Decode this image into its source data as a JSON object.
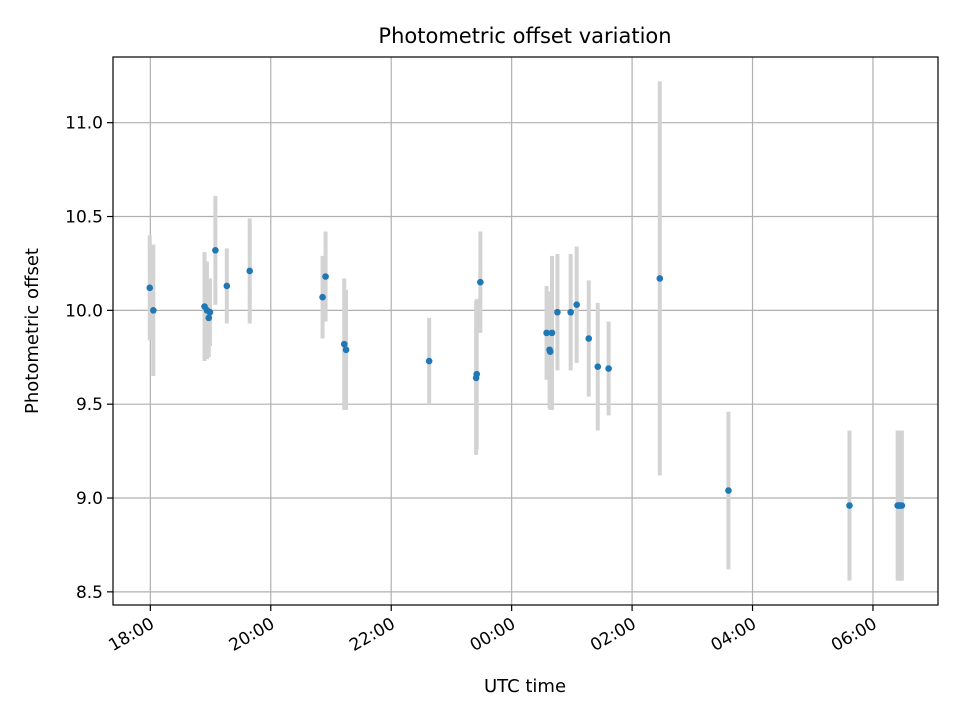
{
  "chart_data": {
    "type": "scatter",
    "title": "Photometric offset variation",
    "xlabel": "UTC time",
    "ylabel": "Photometric offset",
    "x_unit": "hours (UTC, continuing past midnight)",
    "xlim": [
      17.38,
      31.08
    ],
    "ylim": [
      8.43,
      11.35
    ],
    "x_ticks": [
      {
        "value": 18,
        "label": "18:00"
      },
      {
        "value": 20,
        "label": "20:00"
      },
      {
        "value": 22,
        "label": "22:00"
      },
      {
        "value": 24,
        "label": "00:00"
      },
      {
        "value": 26,
        "label": "02:00"
      },
      {
        "value": 28,
        "label": "04:00"
      },
      {
        "value": 30,
        "label": "06:00"
      }
    ],
    "y_ticks": [
      {
        "value": 8.5,
        "label": "8.5"
      },
      {
        "value": 9.0,
        "label": "9.0"
      },
      {
        "value": 9.5,
        "label": "9.5"
      },
      {
        "value": 10.0,
        "label": "10.0"
      },
      {
        "value": 10.5,
        "label": "10.5"
      },
      {
        "value": 11.0,
        "label": "11.0"
      }
    ],
    "grid": true,
    "point_color": "#1f77b4",
    "errorbar_color": "#d3d3d3",
    "points": [
      {
        "x": 17.99,
        "y": 10.12,
        "err": 0.28
      },
      {
        "x": 18.05,
        "y": 10.0,
        "err": 0.35
      },
      {
        "x": 18.9,
        "y": 10.02,
        "err": 0.29
      },
      {
        "x": 18.94,
        "y": 10.0,
        "err": 0.26
      },
      {
        "x": 18.97,
        "y": 9.96,
        "err": 0.21
      },
      {
        "x": 18.99,
        "y": 9.99,
        "err": 0.18
      },
      {
        "x": 19.08,
        "y": 10.32,
        "err": 0.29
      },
      {
        "x": 19.27,
        "y": 10.13,
        "err": 0.2
      },
      {
        "x": 19.65,
        "y": 10.21,
        "err": 0.28
      },
      {
        "x": 20.86,
        "y": 10.07,
        "err": 0.22
      },
      {
        "x": 20.91,
        "y": 10.18,
        "err": 0.24
      },
      {
        "x": 21.22,
        "y": 9.82,
        "err": 0.35
      },
      {
        "x": 21.25,
        "y": 9.79,
        "err": 0.32
      },
      {
        "x": 22.63,
        "y": 9.73,
        "err": 0.23
      },
      {
        "x": 23.41,
        "y": 9.64,
        "err": 0.41
      },
      {
        "x": 23.42,
        "y": 9.66,
        "err": 0.4
      },
      {
        "x": 23.48,
        "y": 10.15,
        "err": 0.27
      },
      {
        "x": 24.58,
        "y": 9.88,
        "err": 0.25
      },
      {
        "x": 24.63,
        "y": 9.79,
        "err": 0.31
      },
      {
        "x": 24.64,
        "y": 9.78,
        "err": 0.31
      },
      {
        "x": 24.67,
        "y": 9.88,
        "err": 0.41
      },
      {
        "x": 24.76,
        "y": 9.99,
        "err": 0.31
      },
      {
        "x": 24.98,
        "y": 9.99,
        "err": 0.31
      },
      {
        "x": 25.08,
        "y": 10.03,
        "err": 0.31
      },
      {
        "x": 25.28,
        "y": 9.85,
        "err": 0.31
      },
      {
        "x": 25.43,
        "y": 9.7,
        "err": 0.34
      },
      {
        "x": 25.61,
        "y": 9.69,
        "err": 0.25
      },
      {
        "x": 26.46,
        "y": 10.17,
        "err": 1.05
      },
      {
        "x": 27.6,
        "y": 9.04,
        "err": 0.42
      },
      {
        "x": 29.61,
        "y": 8.96,
        "err": 0.4
      },
      {
        "x": 30.41,
        "y": 8.96,
        "err": 0.4
      },
      {
        "x": 30.43,
        "y": 8.96,
        "err": 0.4
      },
      {
        "x": 30.45,
        "y": 8.96,
        "err": 0.4
      },
      {
        "x": 30.48,
        "y": 8.96,
        "err": 0.4
      }
    ]
  }
}
